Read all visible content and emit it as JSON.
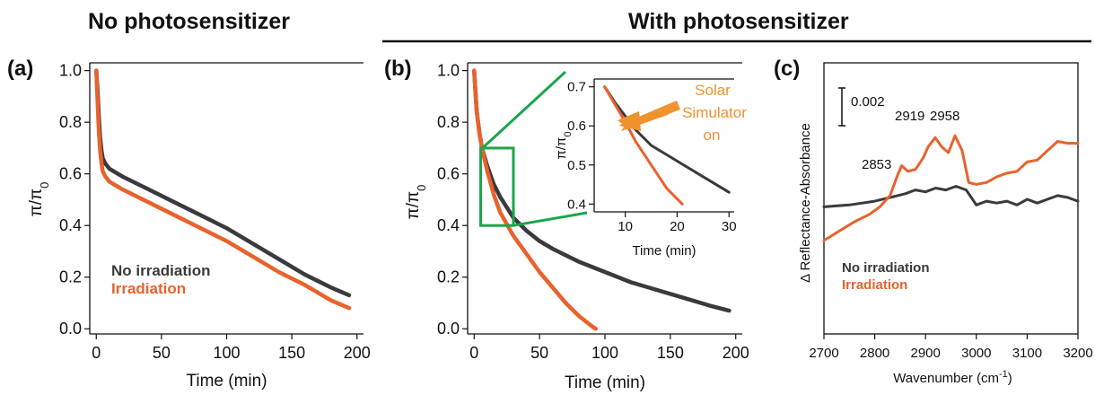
{
  "colors": {
    "no_irradiation": "#3a3a3e",
    "irradiation": "#e8622c",
    "green": "#1aa54c",
    "solar": "#f0922e"
  },
  "headers": {
    "left": "No photosensitizer",
    "right": "With photosensitizer"
  },
  "chart_data": [
    {
      "type": "line",
      "panel": "(a)",
      "xlabel": "Time (min)",
      "ylabel": "π/π",
      "ylabel_sub": "0",
      "xlim": [
        -5,
        205
      ],
      "ylim": [
        -0.02,
        1.03
      ],
      "xticks": [
        0,
        50,
        100,
        150,
        200
      ],
      "yticks": [
        0.0,
        0.2,
        0.4,
        0.6,
        0.8,
        1.0
      ],
      "ytick_labels": [
        "0.0",
        "0.2",
        "0.4",
        "0.6",
        "0.8",
        "1.0"
      ],
      "series": [
        {
          "name": "No irradiation",
          "color": "#3a3a3e",
          "x": [
            0,
            1,
            2,
            3,
            4,
            5,
            7,
            10,
            20,
            40,
            60,
            80,
            100,
            120,
            140,
            160,
            180,
            194
          ],
          "y": [
            1.0,
            0.92,
            0.82,
            0.74,
            0.69,
            0.66,
            0.64,
            0.62,
            0.59,
            0.54,
            0.49,
            0.44,
            0.39,
            0.33,
            0.27,
            0.21,
            0.16,
            0.13
          ]
        },
        {
          "name": "Irradiation",
          "color": "#e8622c",
          "x": [
            0,
            1,
            2,
            3,
            4,
            5,
            7,
            10,
            20,
            40,
            60,
            80,
            100,
            120,
            140,
            160,
            180,
            194
          ],
          "y": [
            1.0,
            0.88,
            0.76,
            0.69,
            0.64,
            0.61,
            0.59,
            0.57,
            0.54,
            0.49,
            0.44,
            0.39,
            0.34,
            0.28,
            0.22,
            0.17,
            0.11,
            0.08
          ]
        }
      ],
      "legend": [
        "No irradiation",
        "Irradiation"
      ]
    },
    {
      "type": "line",
      "panel": "(b)",
      "xlabel": "Time (min)",
      "ylabel": "π/π",
      "ylabel_sub": "0",
      "xlim": [
        -5,
        205
      ],
      "ylim": [
        -0.02,
        1.03
      ],
      "xticks": [
        0,
        50,
        100,
        150,
        200
      ],
      "yticks": [
        0.0,
        0.2,
        0.4,
        0.6,
        0.8,
        1.0
      ],
      "ytick_labels": [
        "0.0",
        "0.2",
        "0.4",
        "0.6",
        "0.8",
        "1.0"
      ],
      "series": [
        {
          "name": "No irradiation",
          "color": "#3a3a3e",
          "x": [
            0,
            1,
            2,
            4,
            6,
            10,
            15,
            20,
            30,
            40,
            50,
            60,
            80,
            100,
            120,
            140,
            160,
            180,
            195
          ],
          "y": [
            1.0,
            0.92,
            0.84,
            0.76,
            0.7,
            0.63,
            0.56,
            0.51,
            0.43,
            0.38,
            0.34,
            0.31,
            0.26,
            0.22,
            0.18,
            0.15,
            0.12,
            0.09,
            0.07
          ]
        },
        {
          "name": "Irradiation",
          "color": "#e8622c",
          "x": [
            0,
            1,
            2,
            4,
            6,
            10,
            15,
            20,
            30,
            40,
            50,
            60,
            70,
            80,
            90,
            93
          ],
          "y": [
            1.0,
            0.92,
            0.84,
            0.76,
            0.7,
            0.61,
            0.52,
            0.45,
            0.36,
            0.29,
            0.22,
            0.16,
            0.1,
            0.05,
            0.01,
            0.0
          ]
        }
      ],
      "zoom_box": {
        "x": [
          5,
          30
        ],
        "y": [
          0.4,
          0.7
        ]
      }
    },
    {
      "type": "line",
      "panel": "inset",
      "xlabel": "Time (min)",
      "ylabel": "π/π",
      "ylabel_sub": "0",
      "xlim": [
        4,
        31
      ],
      "ylim": [
        0.38,
        0.72
      ],
      "xticks": [
        10,
        20,
        30
      ],
      "yticks": [
        0.4,
        0.5,
        0.6,
        0.7
      ],
      "ytick_labels": [
        "0.4",
        "0.5",
        "0.6",
        "0.7"
      ],
      "series": [
        {
          "name": "No irradiation",
          "color": "#3a3a3e",
          "x": [
            6,
            8,
            10,
            12,
            15,
            20,
            25,
            30
          ],
          "y": [
            0.7,
            0.66,
            0.625,
            0.59,
            0.55,
            0.51,
            0.47,
            0.43
          ]
        },
        {
          "name": "Irradiation",
          "color": "#e8622c",
          "x": [
            6,
            8,
            10,
            12,
            15,
            18,
            21
          ],
          "y": [
            0.7,
            0.655,
            0.61,
            0.56,
            0.5,
            0.44,
            0.4
          ]
        }
      ],
      "annotation": [
        "Solar",
        "Simulator",
        "on"
      ]
    },
    {
      "type": "line",
      "panel": "(c)",
      "xlabel": "Wavenumber (cm",
      "xlabel_sup": "-1",
      "xlabel_end": ")",
      "ylabel": "Δ Reflectance-Absorbance",
      "xlim": [
        2700,
        3200
      ],
      "xticks": [
        2700,
        2800,
        2900,
        3000,
        3100,
        3200
      ],
      "scale_bar": "0.002",
      "peak_labels": [
        {
          "text": "2853",
          "x": 2853
        },
        {
          "text": "2919",
          "x": 2919
        },
        {
          "text": "2958",
          "x": 2958
        }
      ],
      "series": [
        {
          "name": "No irradiation",
          "color": "#3a3a3e",
          "x": [
            2700,
            2750,
            2800,
            2830,
            2860,
            2880,
            2900,
            2920,
            2940,
            2960,
            2980,
            3000,
            3020,
            3040,
            3060,
            3080,
            3100,
            3120,
            3140,
            3160,
            3180,
            3200
          ],
          "y": [
            0.0068,
            0.0069,
            0.0071,
            0.0073,
            0.0075,
            0.0077,
            0.0076,
            0.0078,
            0.0077,
            0.0079,
            0.0077,
            0.0069,
            0.0071,
            0.007,
            0.0071,
            0.0069,
            0.0072,
            0.007,
            0.0072,
            0.0074,
            0.0073,
            0.0071
          ]
        },
        {
          "name": "Irradiation",
          "color": "#e8622c",
          "x": [
            2700,
            2730,
            2760,
            2790,
            2810,
            2830,
            2845,
            2853,
            2865,
            2880,
            2895,
            2905,
            2919,
            2932,
            2945,
            2958,
            2972,
            2985,
            3000,
            3020,
            3040,
            3060,
            3080,
            3100,
            3120,
            3140,
            3160,
            3180,
            3200
          ],
          "y": [
            0.005,
            0.0055,
            0.006,
            0.0064,
            0.0068,
            0.0074,
            0.0085,
            0.009,
            0.0087,
            0.0088,
            0.0094,
            0.01,
            0.0105,
            0.01,
            0.0097,
            0.0106,
            0.0098,
            0.0081,
            0.008,
            0.0081,
            0.0084,
            0.0086,
            0.0087,
            0.0092,
            0.0093,
            0.0098,
            0.0103,
            0.0102,
            0.0102
          ]
        }
      ],
      "ylim": [
        0.0,
        0.0145
      ],
      "legend": [
        "No irradiation",
        "Irradiation"
      ]
    }
  ]
}
